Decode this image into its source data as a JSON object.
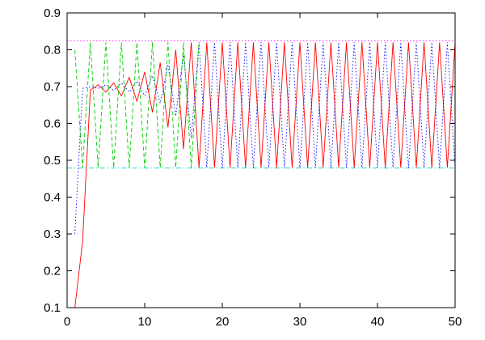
{
  "chart_data": {
    "type": "line",
    "title": "",
    "xlabel": "",
    "ylabel": "",
    "xlim": [
      0,
      50
    ],
    "ylim": [
      0.1,
      0.9
    ],
    "grid": false,
    "legend": "none",
    "x_ticks": [
      "0",
      "10",
      "20",
      "30",
      "40",
      "50"
    ],
    "y_ticks": [
      "0.1",
      "0.2",
      "0.3",
      "0.4",
      "0.5",
      "0.6",
      "0.7",
      "0.8",
      "0.9"
    ],
    "series": [
      {
        "color": "#ff0000",
        "dash": "solid",
        "x": [
          1,
          2,
          3,
          4,
          5,
          6,
          7,
          8,
          9,
          10,
          11,
          12,
          13,
          14,
          15,
          16,
          17,
          18,
          19,
          20,
          21,
          22,
          23,
          24,
          25,
          26,
          27,
          28,
          29,
          30,
          31,
          32,
          33,
          34,
          35,
          36,
          37,
          38,
          39,
          40,
          41,
          42,
          43,
          44,
          45,
          46,
          47,
          48,
          49,
          50
        ],
        "values": [
          0.1,
          0.28,
          0.69,
          0.705,
          0.685,
          0.71,
          0.675,
          0.725,
          0.66,
          0.74,
          0.63,
          0.765,
          0.59,
          0.8,
          0.53,
          0.82,
          0.48,
          0.82,
          0.48,
          0.82,
          0.48,
          0.82,
          0.48,
          0.82,
          0.48,
          0.82,
          0.48,
          0.82,
          0.48,
          0.82,
          0.48,
          0.82,
          0.48,
          0.82,
          0.48,
          0.82,
          0.48,
          0.82,
          0.48,
          0.82,
          0.48,
          0.82,
          0.48,
          0.82,
          0.48,
          0.82,
          0.48,
          0.82,
          0.48,
          0.82
        ]
      },
      {
        "color": "#0000ff",
        "dash": "dotted",
        "x": [
          1,
          2,
          3,
          4,
          5,
          6,
          7,
          8,
          9,
          10,
          11,
          12,
          13,
          14,
          15,
          16,
          17,
          18,
          19,
          20,
          21,
          22,
          23,
          24,
          25,
          26,
          27,
          28,
          29,
          30,
          31,
          32,
          33,
          34,
          35,
          36,
          37,
          38,
          39,
          40,
          41,
          42,
          43,
          44,
          45,
          46,
          47,
          48,
          49,
          50
        ],
        "values": [
          0.3,
          0.695,
          0.7,
          0.695,
          0.705,
          0.69,
          0.71,
          0.685,
          0.715,
          0.675,
          0.73,
          0.655,
          0.76,
          0.62,
          0.79,
          0.56,
          0.82,
          0.48,
          0.82,
          0.48,
          0.82,
          0.48,
          0.82,
          0.48,
          0.82,
          0.48,
          0.82,
          0.48,
          0.82,
          0.48,
          0.82,
          0.48,
          0.82,
          0.48,
          0.82,
          0.48,
          0.82,
          0.48,
          0.82,
          0.48,
          0.82,
          0.48,
          0.82,
          0.48,
          0.82,
          0.48,
          0.82,
          0.48,
          0.82,
          0.48
        ]
      },
      {
        "color": "#00cc00",
        "dash": "dashed",
        "x": [
          1,
          2,
          3,
          4,
          5,
          6,
          7,
          8,
          9,
          10,
          11,
          12,
          13,
          14,
          15,
          16,
          17
        ],
        "values": [
          0.8,
          0.48,
          0.82,
          0.48,
          0.82,
          0.48,
          0.82,
          0.48,
          0.82,
          0.48,
          0.82,
          0.48,
          0.82,
          0.48,
          0.82,
          0.48,
          0.82
        ]
      },
      {
        "color": "#ff00ff",
        "dash": "dotted",
        "x": [
          0,
          50
        ],
        "values": [
          0.824,
          0.824
        ]
      },
      {
        "color": "#00cccc",
        "dash": "dash-dot",
        "x": [
          0,
          50
        ],
        "values": [
          0.479,
          0.479
        ]
      }
    ]
  }
}
